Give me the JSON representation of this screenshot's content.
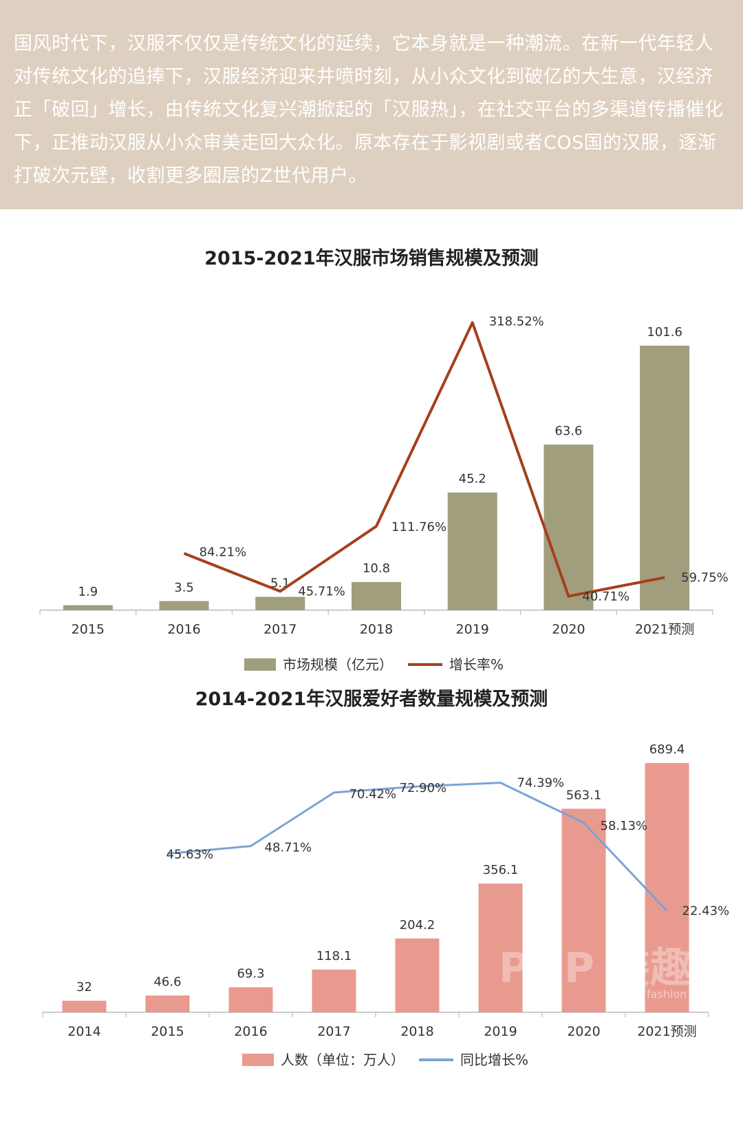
{
  "intro": {
    "text": "国风时代下，汉服不仅仅是传统文化的延续，它本身就是一种潮流。在新一代年轻人对传统文化的追捧下，汉服经济迎来井喷时刻，从小众文化到破亿的大生意，汉经济正「破回」增长，由传统文化复兴潮掀起的「汉服热」，在社交平台的多渠道传播催化下，正推动汉服从小众审美走回大众化。原本存在于影视剧或者COS国的汉服，逐渐打破次元壁，收割更多圈层的Z世代用户。",
    "background_color": "#ded0c0"
  },
  "watermark": {
    "text": "POP 装趣",
    "subtext": "fashion"
  },
  "chart_data": [
    {
      "type": "bar",
      "title": "2015-2021年汉服市场销售规模及预测",
      "categories": [
        "2015",
        "2016",
        "2017",
        "2018",
        "2019",
        "2020",
        "2021预测"
      ],
      "series": [
        {
          "name": "市场规模（亿元）",
          "type": "bar",
          "color": "#a19e7e",
          "values": [
            1.9,
            3.5,
            5.1,
            10.8,
            45.2,
            63.6,
            101.6
          ],
          "labels": [
            "1.9",
            "3.5",
            "5.1",
            "10.8",
            "45.2",
            "63.6",
            "101.6"
          ]
        },
        {
          "name": "增长率%",
          "type": "line",
          "color": "#a63f1c",
          "values": [
            null,
            84.21,
            45.71,
            111.76,
            318.52,
            40.71,
            59.75
          ],
          "labels": [
            "",
            "84.21%",
            "45.71%",
            "111.76%",
            "318.52%",
            "40.71%",
            "59.75%"
          ]
        }
      ],
      "legend_position": "bottom",
      "grid": false
    },
    {
      "type": "bar",
      "title": "2014-2021年汉服爱好者数量规模及预测",
      "categories": [
        "2014",
        "2015",
        "2016",
        "2017",
        "2018",
        "2019",
        "2020",
        "2021预测"
      ],
      "series": [
        {
          "name": "人数（单位：万人）",
          "type": "bar",
          "color": "#e99a8e",
          "values": [
            32,
            46.6,
            69.3,
            118.1,
            204.2,
            356.1,
            563.1,
            689.4
          ],
          "labels": [
            "32",
            "46.6",
            "69.3",
            "118.1",
            "204.2",
            "356.1",
            "563.1",
            "689.4"
          ]
        },
        {
          "name": "同比增长%",
          "type": "line",
          "color": "#7ba3d6",
          "values": [
            null,
            45.63,
            48.71,
            70.42,
            72.9,
            74.39,
            58.13,
            22.43
          ],
          "labels": [
            "",
            "45.63%",
            "48.71%",
            "70.42%",
            "72.90%",
            "74.39%",
            "58.13%",
            "22.43%"
          ]
        }
      ],
      "legend_position": "bottom",
      "grid": false
    }
  ]
}
